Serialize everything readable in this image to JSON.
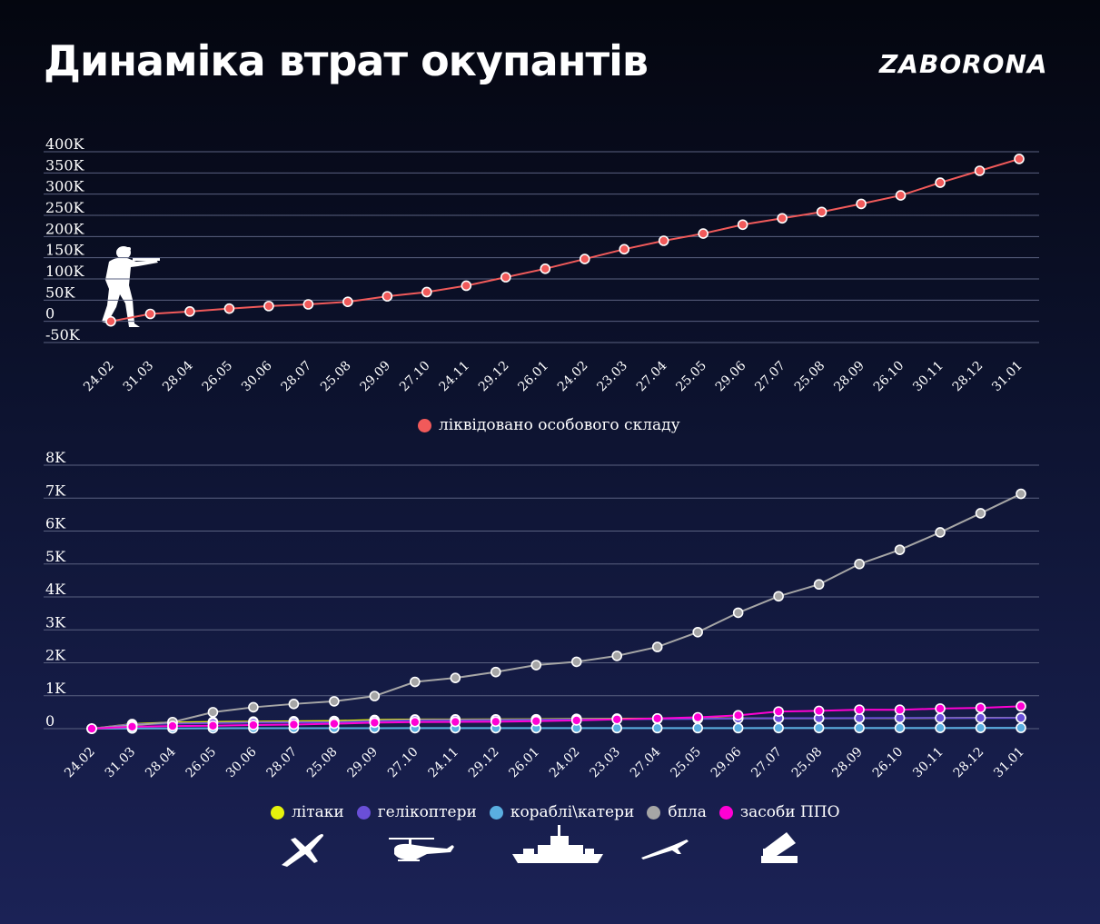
{
  "title": "Динаміка втрат окупантів",
  "brand": "ZABORONA",
  "icons": {
    "personnel": "soldier-silhouette-icon",
    "aircraft": "plane-icon",
    "helicopters": "helicopter-icon",
    "ships": "warship-icon",
    "drones": "drone-icon",
    "air_defense": "air-defense-launcher-icon"
  },
  "chart_data": [
    {
      "type": "line",
      "categories": [
        "24.02",
        "31.03",
        "28.04",
        "26.05",
        "30.06",
        "28.07",
        "25.08",
        "29.09",
        "27.10",
        "24.11",
        "29.12",
        "26.01",
        "24.02",
        "23.03",
        "27.04",
        "25.05",
        "29.06",
        "27.07",
        "25.08",
        "28.09",
        "26.10",
        "30.11",
        "28.12",
        "31.01"
      ],
      "ylim": [
        -50000,
        400000
      ],
      "yticks": [
        -50000,
        0,
        50000,
        100000,
        150000,
        200000,
        250000,
        300000,
        350000,
        400000
      ],
      "ytick_labels": [
        "-50K",
        "0",
        "50K",
        "100K",
        "150K",
        "200K",
        "250K",
        "300K",
        "350K",
        "400K"
      ],
      "grid": true,
      "legend_position": "bottom",
      "series": [
        {
          "name": "ліквідовано особового складу",
          "color": "#f15a5a",
          "values": [
            0,
            17500,
            23200,
            30000,
            36000,
            40000,
            46000,
            59000,
            69000,
            84000,
            104000,
            124000,
            147000,
            170000,
            190000,
            207000,
            228000,
            243000,
            258000,
            277000,
            297000,
            327000,
            355000,
            383000
          ]
        }
      ]
    },
    {
      "type": "line",
      "categories": [
        "24.02",
        "31.03",
        "28.04",
        "26.05",
        "30.06",
        "28.07",
        "25.08",
        "29.09",
        "27.10",
        "24.11",
        "29.12",
        "26.01",
        "24.02",
        "23.03",
        "27.04",
        "25.05",
        "29.06",
        "27.07",
        "25.08",
        "28.09",
        "26.10",
        "30.11",
        "28.12",
        "31.01"
      ],
      "ylim": [
        0,
        8000
      ],
      "yticks": [
        0,
        1000,
        2000,
        3000,
        4000,
        5000,
        6000,
        7000,
        8000
      ],
      "ytick_labels": [
        "0",
        "1K",
        "2K",
        "3K",
        "4K",
        "5K",
        "6K",
        "7K",
        "8K"
      ],
      "grid": true,
      "legend_position": "bottom",
      "series": [
        {
          "name": "літаки",
          "color": "#e6f20c",
          "values": [
            0,
            140,
            190,
            205,
            215,
            225,
            234,
            264,
            278,
            280,
            283,
            286,
            300,
            305,
            308,
            313,
            315,
            315,
            315,
            316,
            317,
            323,
            331,
            332
          ]
        },
        {
          "name": "гелікоптери",
          "color": "#6a4fd8",
          "values": [
            0,
            130,
            155,
            170,
            185,
            192,
            196,
            232,
            260,
            262,
            267,
            272,
            287,
            290,
            294,
            298,
            310,
            316,
            316,
            321,
            324,
            325,
            324,
            326
          ]
        },
        {
          "name": "кораблі\\катери",
          "color": "#5aaee0",
          "values": [
            0,
            7,
            8,
            12,
            14,
            15,
            15,
            15,
            16,
            16,
            16,
            16,
            18,
            18,
            18,
            18,
            18,
            19,
            20,
            20,
            22,
            22,
            23,
            24
          ]
        },
        {
          "name": "бпла",
          "color": "#a6a6a6",
          "values": [
            0,
            100,
            200,
            500,
            650,
            750,
            830,
            990,
            1420,
            1540,
            1720,
            1930,
            2030,
            2210,
            2480,
            2930,
            3520,
            4020,
            4380,
            5000,
            5430,
            5960,
            6540,
            7130
          ]
        },
        {
          "name": "засоби ППО",
          "color": "#ff00d4",
          "values": [
            0,
            60,
            80,
            90,
            110,
            125,
            150,
            182,
            200,
            205,
            212,
            228,
            250,
            282,
            310,
            345,
            405,
            520,
            540,
            575,
            573,
            610,
            630,
            680
          ]
        }
      ]
    }
  ]
}
